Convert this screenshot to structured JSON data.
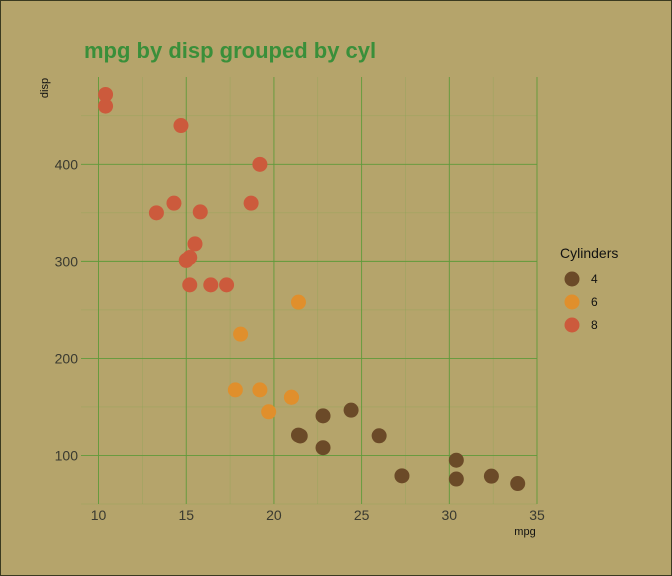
{
  "chart_data": {
    "type": "scatter",
    "title": "mpg by disp grouped by cyl",
    "xlabel": "mpg",
    "ylabel": "disp",
    "xlim": [
      9,
      35
    ],
    "ylim": [
      50,
      490
    ],
    "x_ticks": [
      10,
      15,
      20,
      25,
      30,
      35
    ],
    "y_ticks": [
      100,
      200,
      300,
      400
    ],
    "grid": true,
    "legend": {
      "title": "Cylinders",
      "position": "right"
    },
    "series": [
      {
        "name": "4",
        "color": "#6b4a28",
        "points": [
          [
            22.8,
            108
          ],
          [
            24.4,
            146.7
          ],
          [
            22.8,
            140.8
          ],
          [
            32.4,
            78.7
          ],
          [
            30.4,
            75.7
          ],
          [
            33.9,
            71.1
          ],
          [
            21.5,
            120.1
          ],
          [
            27.3,
            79
          ],
          [
            26,
            120.3
          ],
          [
            30.4,
            95.1
          ],
          [
            21.4,
            121
          ]
        ]
      },
      {
        "name": "6",
        "color": "#e08f2c",
        "points": [
          [
            21,
            160
          ],
          [
            21,
            160
          ],
          [
            21.4,
            258
          ],
          [
            18.1,
            225
          ],
          [
            19.2,
            167.6
          ],
          [
            17.8,
            167.6
          ],
          [
            19.7,
            145
          ]
        ]
      },
      {
        "name": "8",
        "color": "#cc5a3c",
        "points": [
          [
            18.7,
            360
          ],
          [
            14.3,
            360
          ],
          [
            16.4,
            275.8
          ],
          [
            17.3,
            275.8
          ],
          [
            15.2,
            275.8
          ],
          [
            10.4,
            472
          ],
          [
            10.4,
            460
          ],
          [
            14.7,
            440
          ],
          [
            15.5,
            318
          ],
          [
            15.2,
            304
          ],
          [
            13.3,
            350
          ],
          [
            19.2,
            400
          ],
          [
            15.8,
            351
          ],
          [
            15,
            301
          ]
        ]
      }
    ]
  }
}
